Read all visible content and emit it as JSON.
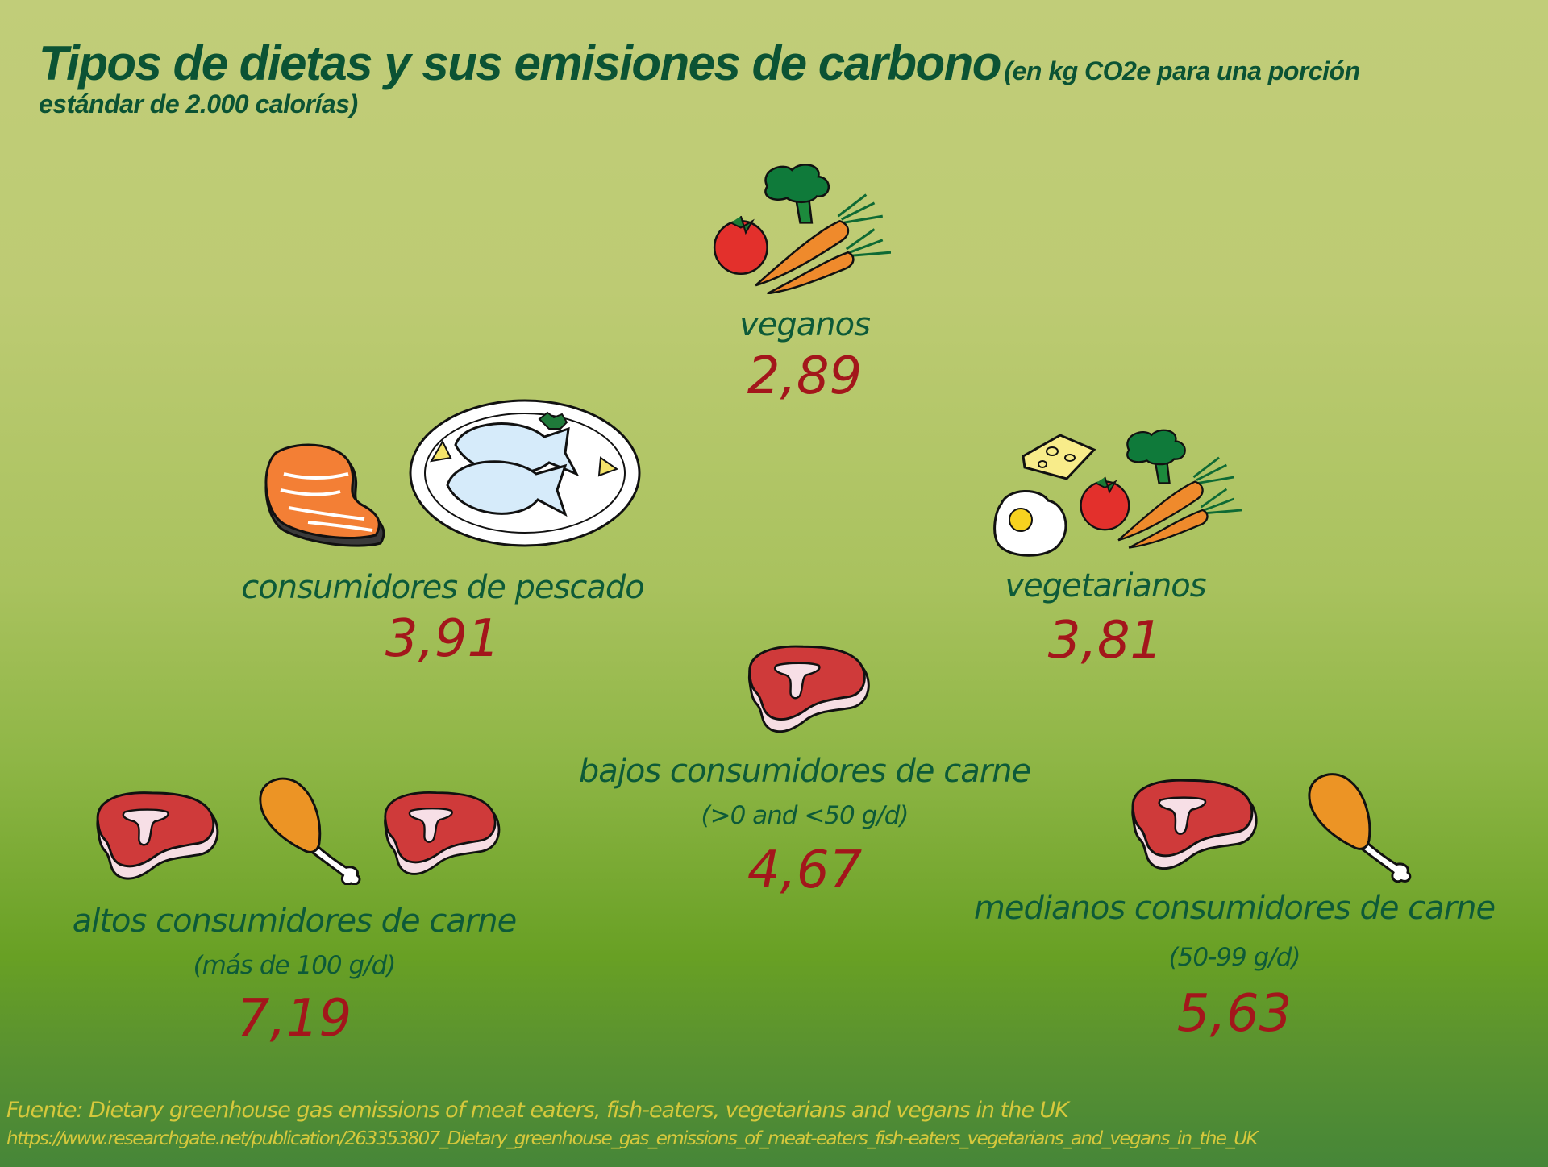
{
  "title": {
    "main": "Tipos de dietas y sus emisiones de carbono",
    "subtitle_part1": "(en kg CO2e para una porción",
    "subtitle_part2": "estándar de 2.000 calorías)"
  },
  "diets": {
    "veganos": {
      "label": "veganos",
      "value": "2,89",
      "icons": [
        "vegetables-icon"
      ]
    },
    "pescado": {
      "label": "consumidores de pescado",
      "value": "3,91",
      "icons": [
        "salmon-steak-icon",
        "fish-plate-icon"
      ]
    },
    "vegetarianos": {
      "label": "vegetarianos",
      "value": "3,81",
      "icons": [
        "cheese-icon",
        "egg-icon",
        "vegetables-icon"
      ]
    },
    "bajos": {
      "label": "bajos consumidores de carne",
      "range": "(>0 and <50 g/d)",
      "value": "4,67",
      "icons": [
        "steak-icon"
      ]
    },
    "altos": {
      "label": "altos consumidores de carne",
      "range": "(más de 100 g/d)",
      "value": "7,19",
      "icons": [
        "steak-icon",
        "chicken-leg-icon",
        "steak-icon"
      ]
    },
    "medianos": {
      "label": "medianos consumidores de carne",
      "range": "(50-99 g/d)",
      "value": "5,63",
      "icons": [
        "steak-icon",
        "chicken-leg-icon"
      ]
    }
  },
  "footer": {
    "source": "Fuente: Dietary greenhouse gas emissions of meat eaters, fish-eaters, vegetarians and vegans in the UK",
    "url": "https://www.researchgate.net/publication/263353807_Dietary_greenhouse_gas_emissions_of_meat-eaters_fish-eaters_vegetarians_and_vegans_in_the_UK"
  },
  "colors": {
    "title": "#0b5334",
    "label": "#0d5a38",
    "value": "#a3161b",
    "footer": "#d6c83c",
    "background_top": "#c1cd79",
    "background_bottom": "#468638"
  }
}
